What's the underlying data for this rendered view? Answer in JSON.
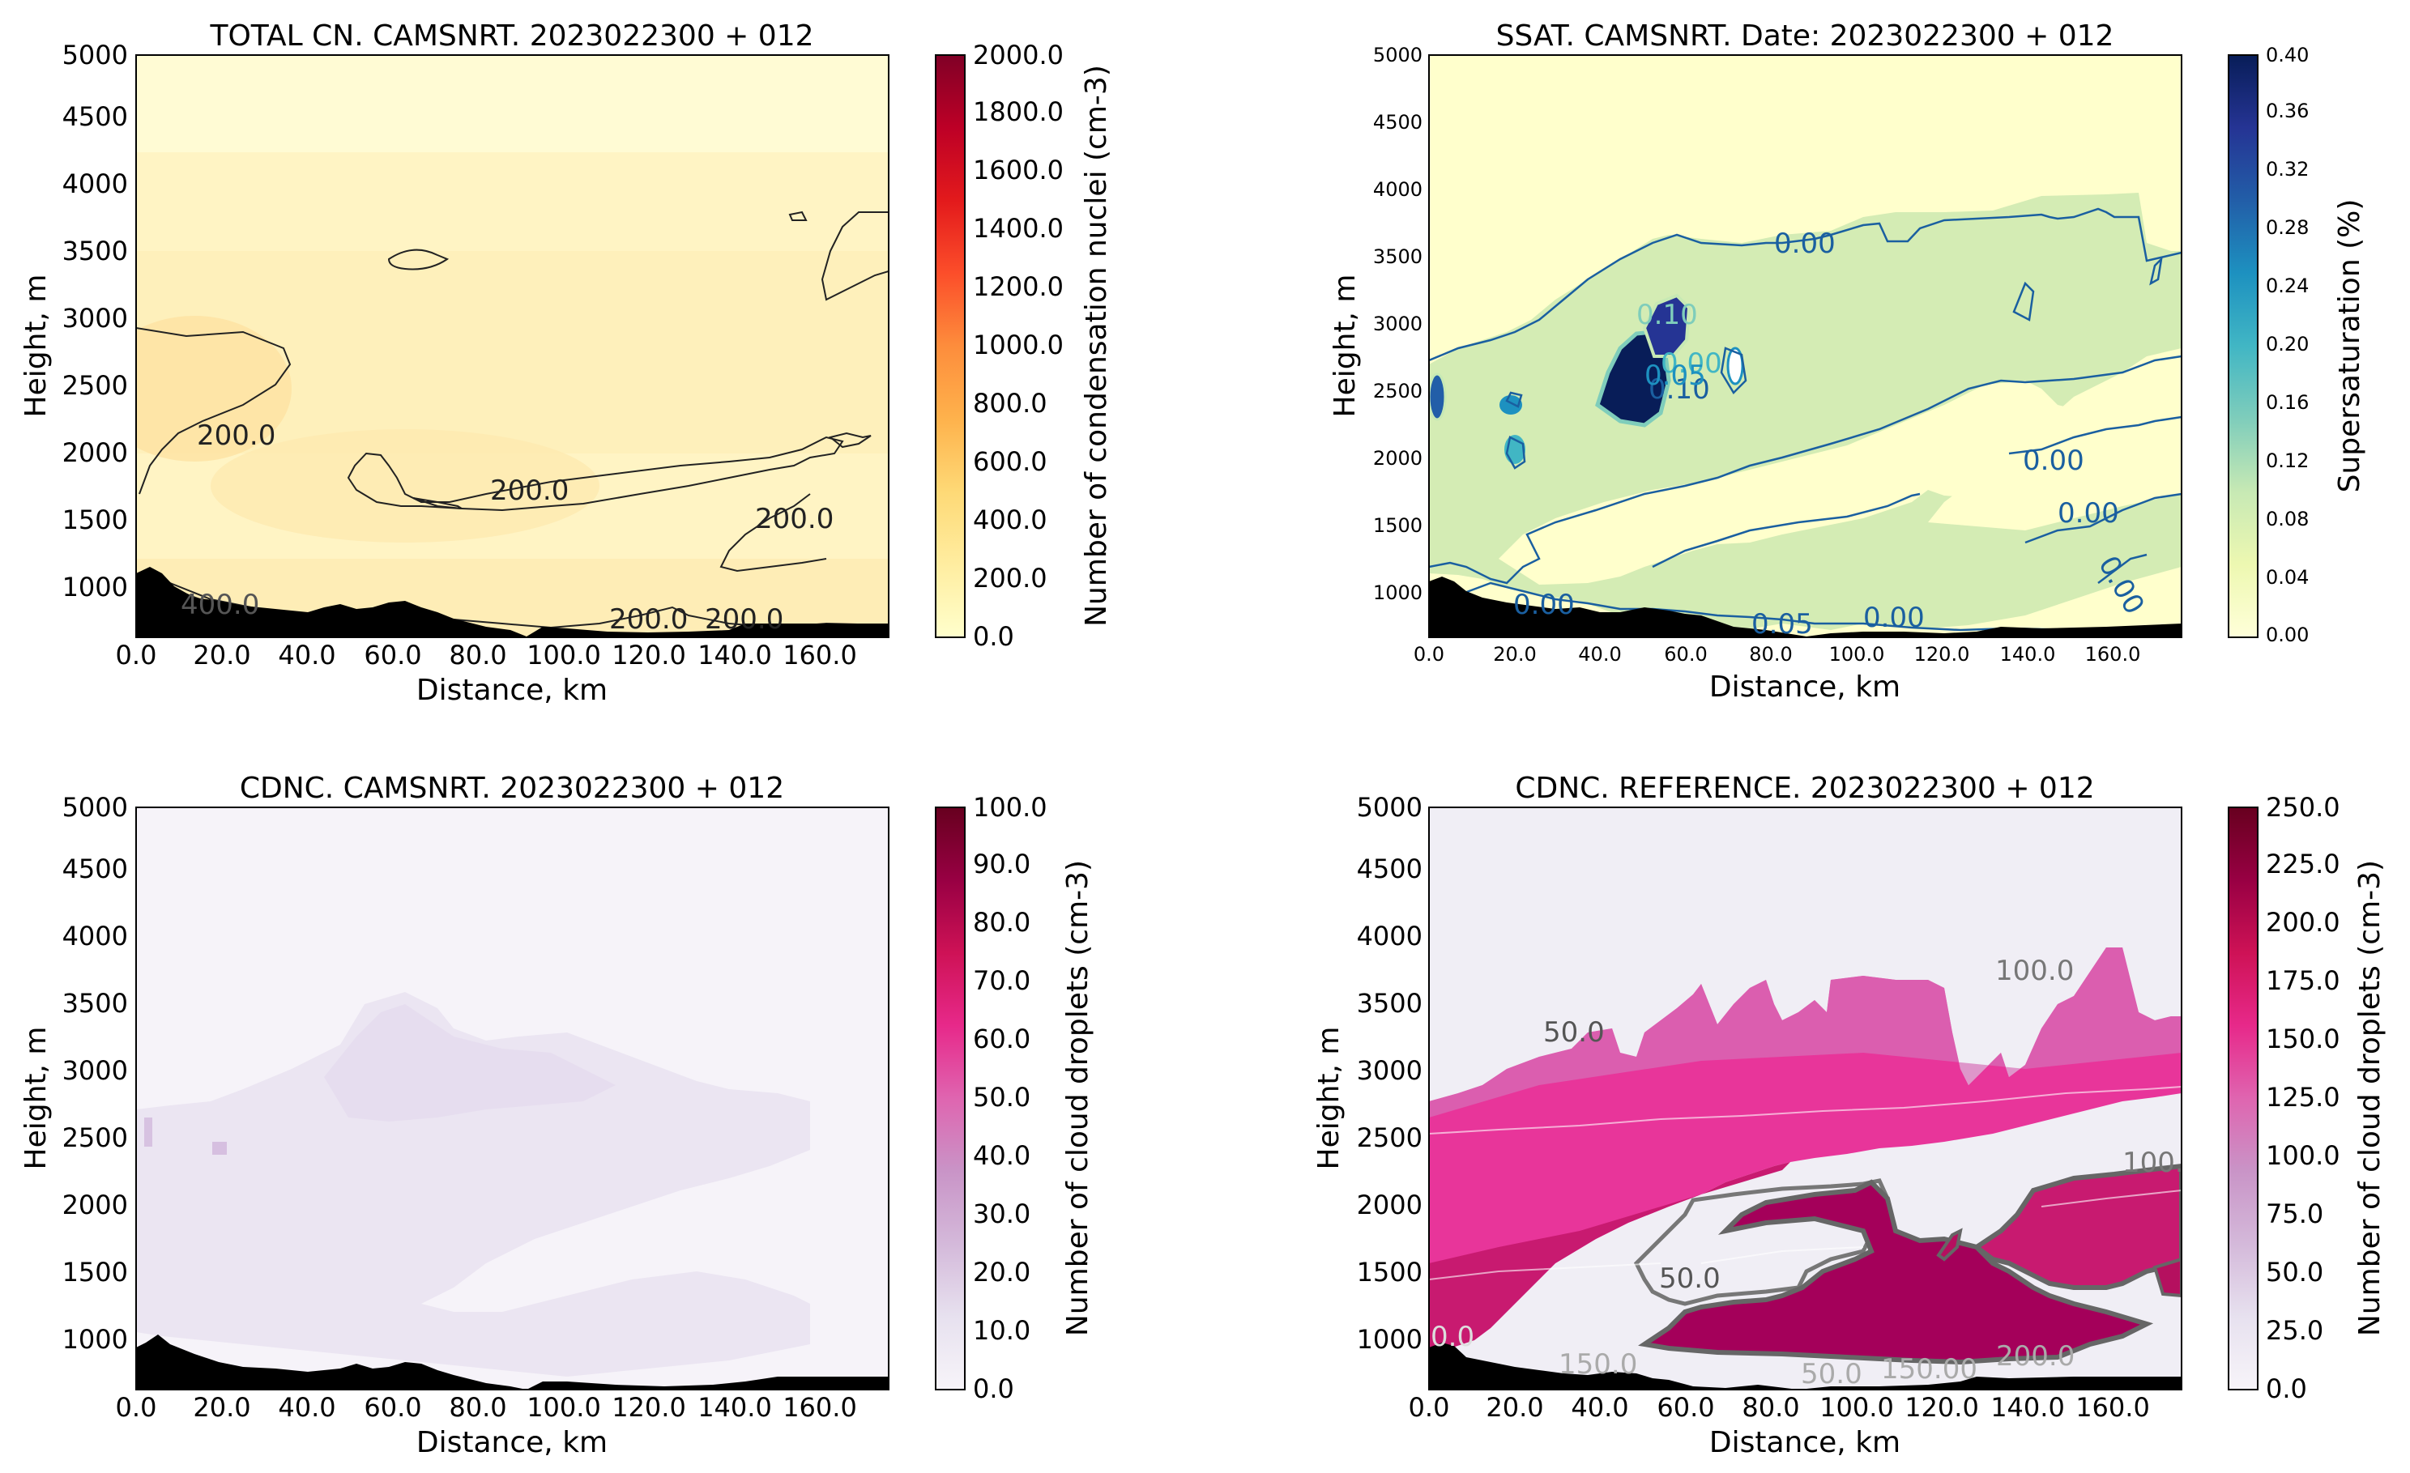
{
  "chart_data": [
    {
      "type": "heatmap",
      "title": "TOTAL CN. CAMSNRT. 2023022300 + 012",
      "xlabel": "Distance, km",
      "ylabel": "Height, m",
      "xlim": [
        0,
        176
      ],
      "ylim": [
        680,
        5000
      ],
      "x_ticks": [
        "0.0",
        "20.0",
        "40.0",
        "60.0",
        "80.0",
        "100.0",
        "120.0",
        "140.0",
        "160.0"
      ],
      "y_ticks": [
        "1000",
        "1500",
        "2000",
        "2500",
        "3000",
        "3500",
        "4000",
        "4500",
        "5000"
      ],
      "colorbar": {
        "label": "Number of condensation nuclei (cm-3)",
        "range": [
          0,
          2000
        ],
        "ticks": [
          "0.0",
          "200.0",
          "400.0",
          "600.0",
          "800.0",
          "1000.0",
          "1200.0",
          "1400.0",
          "1600.0",
          "1800.0",
          "2000.0"
        ],
        "colors": [
          "#ffffcc",
          "#ffeda0",
          "#fed976",
          "#feb24c",
          "#fd8d3c",
          "#fc4e2a",
          "#e31a1c",
          "#bd0026",
          "#800026"
        ]
      },
      "contour_labels": [
        "200.0",
        "200.0",
        "200.0",
        "400.0",
        "200.0",
        "200.0"
      ]
    },
    {
      "type": "heatmap",
      "title": "SSAT. CAMSNRT. Date: 2023022300 + 012",
      "xlabel": "Distance, km",
      "ylabel": "Height, m",
      "xlim": [
        0,
        176
      ],
      "ylim": [
        680,
        5000
      ],
      "x_ticks": [
        "0.0",
        "20.0",
        "40.0",
        "60.0",
        "80.0",
        "100.0",
        "120.0",
        "140.0",
        "160.0"
      ],
      "y_ticks": [
        "1000",
        "1500",
        "2000",
        "2500",
        "3000",
        "3500",
        "4000",
        "4500",
        "5000"
      ],
      "colorbar": {
        "label": "Supersaturation (%)",
        "range": [
          0,
          0.4
        ],
        "ticks": [
          "0.00",
          "0.04",
          "0.08",
          "0.12",
          "0.16",
          "0.20",
          "0.24",
          "0.28",
          "0.32",
          "0.36",
          "0.40"
        ],
        "colors": [
          "#ffffd9",
          "#edf8b1",
          "#c7e9b4",
          "#7fcdbb",
          "#41b6c4",
          "#1d91c0",
          "#225ea8",
          "#253494",
          "#081d58"
        ]
      },
      "contour_labels": [
        "0.00",
        "0.10",
        "0.00",
        "0.05",
        "0.00",
        "0.00",
        "0.00",
        "0.00",
        "0.10",
        "0.00",
        "0.05"
      ]
    },
    {
      "type": "heatmap",
      "title": "CDNC. CAMSNRT. 2023022300 + 012",
      "xlabel": "Distance, km",
      "ylabel": "Height, m",
      "xlim": [
        0,
        176
      ],
      "ylim": [
        680,
        5000
      ],
      "x_ticks": [
        "0.0",
        "20.0",
        "40.0",
        "60.0",
        "80.0",
        "100.0",
        "120.0",
        "140.0",
        "160.0"
      ],
      "y_ticks": [
        "1000",
        "1500",
        "2000",
        "2500",
        "3000",
        "3500",
        "4000",
        "4500",
        "5000"
      ],
      "colorbar": {
        "label": "Number of cloud droplets (cm-3)",
        "range": [
          0,
          100
        ],
        "ticks": [
          "0.0",
          "10.0",
          "20.0",
          "30.0",
          "40.0",
          "50.0",
          "60.0",
          "70.0",
          "80.0",
          "90.0",
          "100.0"
        ],
        "colors": [
          "#f7f4f9",
          "#e7e1ef",
          "#d4b9da",
          "#c994c7",
          "#df65b0",
          "#e7298a",
          "#ce1256",
          "#980043",
          "#67001f"
        ]
      },
      "contour_labels": []
    },
    {
      "type": "heatmap",
      "title": "CDNC. REFERENCE. 2023022300 + 012",
      "xlabel": "Distance, km",
      "ylabel": "Height, m",
      "xlim": [
        0,
        176
      ],
      "ylim": [
        680,
        5000
      ],
      "x_ticks": [
        "0.0",
        "20.0",
        "40.0",
        "60.0",
        "80.0",
        "100.0",
        "120.0",
        "140.0",
        "160.0"
      ],
      "y_ticks": [
        "1000",
        "1500",
        "2000",
        "2500",
        "3000",
        "3500",
        "4000",
        "4500",
        "5000"
      ],
      "colorbar": {
        "label": "Number of cloud droplets (cm-3)",
        "range": [
          0,
          250
        ],
        "ticks": [
          "0.0",
          "25.0",
          "50.0",
          "75.0",
          "100.0",
          "125.0",
          "150.0",
          "175.0",
          "200.0",
          "225.0",
          "250.0"
        ],
        "colors": [
          "#f7f4f9",
          "#e7e1ef",
          "#d4b9da",
          "#c994c7",
          "#df65b0",
          "#e7298a",
          "#ce1256",
          "#980043",
          "#67001f"
        ]
      },
      "contour_labels": [
        "50.0",
        "100.0",
        "100.0",
        "50.0",
        "0.0",
        "150.0",
        "50.0",
        "150.00",
        "200.0"
      ]
    }
  ]
}
